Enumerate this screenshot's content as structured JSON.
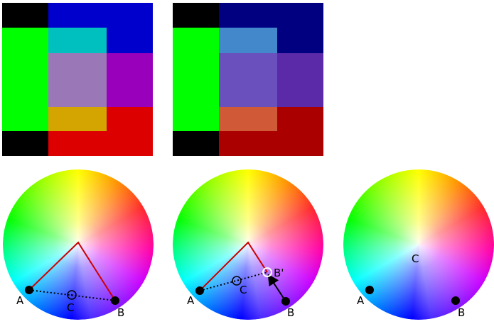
{
  "figures": {
    "wheel_left": {
      "labels": {
        "a": "A",
        "b": "B",
        "c": "C"
      }
    },
    "wheel_middle": {
      "labels": {
        "a": "A",
        "b": "B",
        "b_prime": "B'",
        "c": "C"
      }
    },
    "wheel_right": {
      "labels": {
        "a": "A",
        "b": "B",
        "c": "C"
      }
    }
  },
  "colors": {
    "black": "#000000",
    "green": "#00ff00",
    "blue_left": "#0000cc",
    "blue_right": "#000080",
    "red_left": "#dd0000",
    "red_right": "#aa0000",
    "cyan_left": "#00bfbf",
    "cyan_right": "#4488cc",
    "mix_center_left": "#9a78b8",
    "mix_center_right": "#6a50bd",
    "magenta_left": "#9900bb",
    "magenta_right": "#5a2aa8",
    "yellow_left": "#d4a500",
    "orange_right": "#d05a38",
    "red_line": "#cc0000"
  }
}
